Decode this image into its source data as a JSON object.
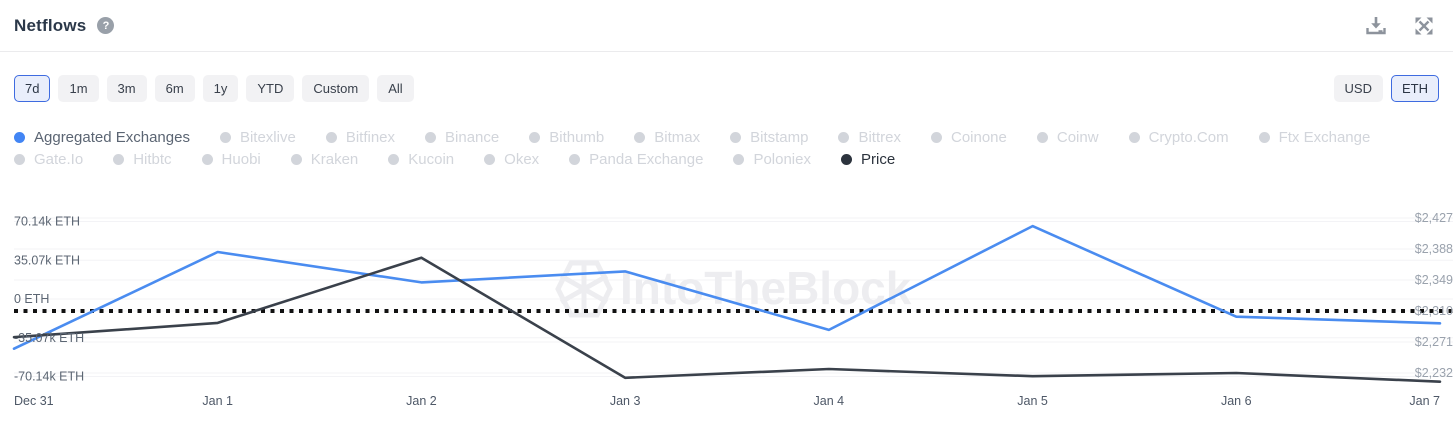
{
  "header": {
    "title": "Netflows",
    "help_label": "?"
  },
  "toolbar": {
    "ranges": [
      "7d",
      "1m",
      "3m",
      "6m",
      "1y",
      "YTD",
      "Custom",
      "All"
    ],
    "selected_range": "7d",
    "currencies": [
      "USD",
      "ETH"
    ],
    "selected_currency": "ETH"
  },
  "legend": {
    "items": [
      {
        "label": "Aggregated Exchanges",
        "active": true,
        "color": "#4285f4"
      },
      {
        "label": "Bitexlive",
        "active": false
      },
      {
        "label": "Bitfinex",
        "active": false
      },
      {
        "label": "Binance",
        "active": false
      },
      {
        "label": "Bithumb",
        "active": false
      },
      {
        "label": "Bitmax",
        "active": false
      },
      {
        "label": "Bitstamp",
        "active": false
      },
      {
        "label": "Bittrex",
        "active": false
      },
      {
        "label": "Coinone",
        "active": false
      },
      {
        "label": "Coinw",
        "active": false
      },
      {
        "label": "Crypto.Com",
        "active": false
      },
      {
        "label": "Ftx Exchange",
        "active": false
      },
      {
        "label": "Gate.Io",
        "active": false
      },
      {
        "label": "Hitbtc",
        "active": false
      },
      {
        "label": "Huobi",
        "active": false
      },
      {
        "label": "Kraken",
        "active": false
      },
      {
        "label": "Kucoin",
        "active": false
      },
      {
        "label": "Okex",
        "active": false
      },
      {
        "label": "Panda Exchange",
        "active": false
      },
      {
        "label": "Poloniex",
        "active": false
      },
      {
        "label": "Price",
        "active": true,
        "color": "#2c333d"
      }
    ]
  },
  "colors": {
    "inactive_legend": "#d2d5db",
    "accent_blue": "#3e6be0",
    "netflow_line": "#4a8cf0",
    "price_line": "#3a414b",
    "grid": "#f3f3f6",
    "left_axis_label": "#5c6673",
    "right_axis_label": "#9aa2ad",
    "x_axis_label": "#4e5867",
    "watermark": "#ededf0",
    "zero_dotted": "#111111"
  },
  "chart_data": {
    "type": "line",
    "title": "Netflows",
    "x": [
      "Dec 31",
      "Jan 1",
      "Jan 2",
      "Jan 3",
      "Jan 4",
      "Jan 5",
      "Jan 6",
      "Jan 7"
    ],
    "series": [
      {
        "name": "Aggregated Exchanges",
        "axis": "left",
        "unit": "ETH",
        "values": [
          -45000,
          42500,
          15000,
          25000,
          -28000,
          66000,
          -16000,
          -22000
        ]
      },
      {
        "name": "Price",
        "axis": "right",
        "unit": "USD",
        "values": [
          2277,
          2295,
          2377,
          2226,
          2237,
          2228,
          2232,
          2221
        ]
      }
    ],
    "left_axis": {
      "tick_labels": [
        "70.14k ETH",
        "35.07k ETH",
        "0 ETH",
        "-35.07k ETH",
        "-70.14k ETH"
      ],
      "tick_values": [
        70140,
        35070,
        0,
        -35070,
        -70140
      ]
    },
    "right_axis": {
      "tick_labels": [
        "$2,427",
        "$2,388",
        "$2,349",
        "$2,310",
        "$2,271",
        "$2,232"
      ],
      "tick_values": [
        2427,
        2388,
        2349,
        2310,
        2271,
        2232
      ]
    },
    "reference_line": {
      "axis": "right",
      "value": 2310,
      "style": "dotted"
    },
    "grid": true,
    "legend_position": "top",
    "watermark": "IntoTheBlock"
  }
}
